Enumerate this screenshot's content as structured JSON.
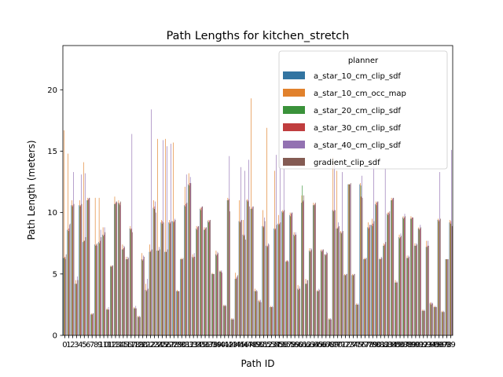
{
  "chart_data": {
    "type": "bar",
    "title": "Path Lengths for kitchen_stretch",
    "xlabel": "Path ID",
    "ylabel": "Path Length (meters)",
    "ylim": [
      0,
      23.6
    ],
    "yticks": [
      0,
      5,
      10,
      15,
      20
    ],
    "grid": false,
    "legend": {
      "title": "planner",
      "placement": "upper right"
    },
    "categories": [
      "0",
      "1",
      "2",
      "3",
      "4",
      "5",
      "6",
      "7",
      "8",
      "9",
      "10",
      "11",
      "12",
      "13",
      "14",
      "15",
      "16",
      "17",
      "18",
      "19",
      "20",
      "21",
      "22",
      "23",
      "24",
      "25",
      "26",
      "27",
      "28",
      "29",
      "30",
      "31",
      "32",
      "33",
      "34",
      "35",
      "36",
      "37",
      "38",
      "39",
      "40",
      "41",
      "42",
      "43",
      "44",
      "45",
      "46",
      "47",
      "48",
      "49",
      "50",
      "51",
      "52",
      "53",
      "54",
      "55",
      "56",
      "57",
      "58",
      "59",
      "60",
      "61",
      "62",
      "63",
      "64",
      "65",
      "66",
      "67",
      "68",
      "69",
      "70",
      "71",
      "72",
      "73",
      "74",
      "75",
      "76",
      "77",
      "78",
      "79",
      "80",
      "81",
      "82",
      "83",
      "84",
      "85",
      "86",
      "87",
      "88",
      "89",
      "90",
      "91",
      "92",
      "93",
      "94",
      "95",
      "96",
      "97",
      "98",
      "99"
    ],
    "series": [
      {
        "name": "a_star_10_cm_clip_sdf",
        "color": "#3274a1",
        "values": [
          6.3,
          8.6,
          10.6,
          4.2,
          10.6,
          7.6,
          11.0,
          1.7,
          7.4,
          7.6,
          8.2,
          2.1,
          5.6,
          10.7,
          10.8,
          7.0,
          6.2,
          8.7,
          2.2,
          1.5,
          6.2,
          3.7,
          6.8,
          10.4,
          6.9,
          9.2,
          6.8,
          9.2,
          9.3,
          3.6,
          6.2,
          10.6,
          12.3,
          6.4,
          8.7,
          10.3,
          8.6,
          9.3,
          5.0,
          6.6,
          5.2,
          2.4,
          11.0,
          1.3,
          4.6,
          9.3,
          8.2,
          11.0,
          10.3,
          3.6,
          2.8,
          8.9,
          7.3,
          2.3,
          8.7,
          9.1,
          10.1,
          6.0,
          9.8,
          8.2,
          3.8,
          10.8,
          4.2,
          6.9,
          10.6,
          3.6,
          6.9,
          6.6,
          1.3,
          10.2,
          8.7,
          8.4,
          4.9,
          12.3,
          4.9,
          2.5,
          12.3,
          6.2,
          8.8,
          9.0,
          10.7,
          6.2,
          7.3,
          9.9,
          11.0,
          4.3,
          8.0,
          9.6,
          6.3,
          9.5,
          7.3,
          8.7,
          2.0,
          7.2,
          2.6,
          2.3,
          9.4,
          1.9,
          6.2,
          9.2
        ]
      },
      {
        "name": "a_star_10_cm_occ_map",
        "color": "#e1812c",
        "values": [
          16.7,
          14.8,
          11.0,
          4.5,
          11.0,
          14.1,
          11.2,
          1.8,
          11.2,
          11.2,
          8.8,
          2.2,
          5.7,
          11.3,
          11.0,
          7.4,
          6.4,
          8.9,
          2.3,
          1.6,
          6.7,
          4.2,
          7.4,
          11.0,
          16.0,
          9.4,
          16.0,
          9.4,
          15.7,
          3.7,
          6.3,
          12.1,
          13.2,
          6.6,
          8.9,
          10.4,
          8.8,
          9.4,
          5.1,
          6.9,
          5.3,
          2.5,
          11.2,
          1.4,
          5.1,
          11.0,
          9.4,
          11.1,
          19.3,
          3.8,
          2.9,
          10.2,
          16.9,
          2.4,
          13.4,
          9.8,
          10.2,
          6.1,
          10.0,
          8.4,
          4.1,
          11.4,
          4.6,
          7.1,
          10.8,
          3.7,
          7.0,
          6.6,
          1.4,
          14.5,
          13.4,
          8.5,
          5.0,
          12.3,
          5.0,
          2.6,
          12.4,
          6.3,
          9.2,
          9.5,
          10.9,
          6.3,
          7.5,
          10.0,
          11.2,
          4.5,
          8.2,
          9.7,
          6.5,
          9.7,
          7.5,
          8.8,
          2.1,
          7.7,
          2.7,
          2.4,
          9.5,
          2.0,
          6.2,
          9.4
        ]
      },
      {
        "name": "a_star_20_cm_clip_sdf",
        "color": "#3a923a",
        "values": [
          6.3,
          8.5,
          10.5,
          4.2,
          10.5,
          7.7,
          11.0,
          1.7,
          7.3,
          7.5,
          8.1,
          2.1,
          5.6,
          10.7,
          10.7,
          7.0,
          6.2,
          8.6,
          2.2,
          1.5,
          6.1,
          3.6,
          6.8,
          10.3,
          6.9,
          9.1,
          6.8,
          9.1,
          9.2,
          3.6,
          6.2,
          10.5,
          12.2,
          6.3,
          8.6,
          10.2,
          8.6,
          9.2,
          5.0,
          6.5,
          5.2,
          2.4,
          11.0,
          1.3,
          4.6,
          9.2,
          8.1,
          10.9,
          10.3,
          3.6,
          2.7,
          8.8,
          7.2,
          2.3,
          8.6,
          9.0,
          10.0,
          6.0,
          9.7,
          8.1,
          3.7,
          12.2,
          4.2,
          6.8,
          10.6,
          3.6,
          6.8,
          6.5,
          1.3,
          10.1,
          8.7,
          8.3,
          4.9,
          12.3,
          4.9,
          2.5,
          12.2,
          6.2,
          8.7,
          8.9,
          10.6,
          6.2,
          7.3,
          9.8,
          11.0,
          4.3,
          7.9,
          9.5,
          6.3,
          9.5,
          7.3,
          8.6,
          2.0,
          7.2,
          2.5,
          2.3,
          9.3,
          1.9,
          6.2,
          9.1
        ]
      },
      {
        "name": "a_star_30_cm_clip_sdf",
        "color": "#c03d3e",
        "values": [
          6.4,
          8.7,
          10.6,
          4.2,
          10.6,
          7.7,
          11.1,
          1.7,
          7.4,
          7.7,
          8.2,
          2.1,
          5.6,
          10.8,
          10.8,
          7.1,
          6.2,
          8.7,
          2.2,
          1.5,
          6.2,
          3.7,
          6.9,
          10.5,
          6.9,
          9.3,
          6.8,
          9.2,
          9.3,
          3.6,
          6.2,
          10.7,
          12.4,
          6.4,
          8.8,
          10.4,
          8.7,
          9.3,
          5.0,
          6.6,
          5.2,
          2.4,
          11.1,
          1.3,
          4.7,
          9.3,
          8.2,
          11.0,
          10.4,
          3.6,
          2.8,
          8.9,
          7.3,
          2.3,
          8.7,
          9.1,
          10.1,
          6.1,
          9.9,
          8.2,
          3.8,
          10.9,
          4.2,
          6.9,
          10.7,
          3.6,
          6.9,
          6.6,
          1.3,
          10.2,
          8.8,
          8.4,
          4.9,
          12.3,
          4.9,
          2.5,
          11.3,
          6.2,
          8.8,
          9.1,
          10.8,
          6.2,
          7.4,
          10.0,
          11.1,
          4.3,
          8.0,
          9.6,
          6.3,
          9.6,
          7.3,
          8.7,
          2.0,
          7.3,
          2.6,
          2.3,
          9.4,
          1.9,
          6.2,
          9.3
        ]
      },
      {
        "name": "a_star_40_cm_clip_sdf",
        "color": "#9372b2",
        "values": [
          6.2,
          9.0,
          13.3,
          4.8,
          13.1,
          13.2,
          11.2,
          1.8,
          7.3,
          8.6,
          8.8,
          2.3,
          5.7,
          10.9,
          10.6,
          7.3,
          6.4,
          16.4,
          2.4,
          1.6,
          6.5,
          4.6,
          18.4,
          10.9,
          7.2,
          15.9,
          15.4,
          15.6,
          9.5,
          3.6,
          6.2,
          13.1,
          12.9,
          6.7,
          8.9,
          10.5,
          8.8,
          9.4,
          5.0,
          6.8,
          5.3,
          2.5,
          14.6,
          1.4,
          4.8,
          13.7,
          13.4,
          14.3,
          10.5,
          3.7,
          2.9,
          9.6,
          7.5,
          2.4,
          14.7,
          14.3,
          13.6,
          6.1,
          10.0,
          8.4,
          4.0,
          11.0,
          4.5,
          7.1,
          10.6,
          3.8,
          7.0,
          6.8,
          1.4,
          13.9,
          9.2,
          13.3,
          5.0,
          12.3,
          5.0,
          2.6,
          13.0,
          6.3,
          9.0,
          13.8,
          10.9,
          6.4,
          13.6,
          9.9,
          11.2,
          4.4,
          8.3,
          9.9,
          6.5,
          9.6,
          7.5,
          9.0,
          2.1,
          7.7,
          2.7,
          2.4,
          13.3,
          2.0,
          6.2,
          15.1
        ]
      },
      {
        "name": "gradient_clip_sdf",
        "color": "#845b53",
        "values": [
          6.6,
          9.1,
          10.7,
          4.5,
          10.7,
          8.0,
          11.2,
          1.8,
          7.5,
          8.0,
          8.4,
          2.1,
          5.7,
          10.9,
          10.9,
          7.2,
          6.3,
          8.4,
          2.2,
          1.5,
          6.4,
          3.8,
          7.0,
          10.0,
          7.0,
          9.2,
          7.0,
          9.3,
          9.4,
          3.6,
          6.3,
          10.8,
          12.4,
          6.4,
          8.9,
          10.5,
          8.8,
          9.4,
          5.0,
          6.7,
          5.1,
          2.4,
          10.1,
          1.3,
          4.9,
          9.4,
          7.8,
          10.5,
          10.5,
          3.6,
          2.7,
          9.3,
          7.4,
          2.3,
          9.0,
          9.2,
          10.2,
          6.0,
          10.0,
          8.2,
          3.8,
          11.4,
          4.5,
          7.0,
          10.8,
          3.7,
          7.0,
          6.7,
          1.3,
          10.2,
          8.9,
          8.5,
          5.0,
          12.4,
          5.0,
          2.5,
          11.2,
          6.3,
          9.0,
          9.3,
          10.9,
          6.3,
          7.6,
          10.1,
          11.2,
          4.3,
          8.1,
          9.7,
          6.4,
          9.6,
          7.4,
          8.8,
          2.0,
          7.3,
          2.6,
          2.3,
          9.5,
          1.9,
          6.2,
          8.9
        ]
      }
    ]
  }
}
